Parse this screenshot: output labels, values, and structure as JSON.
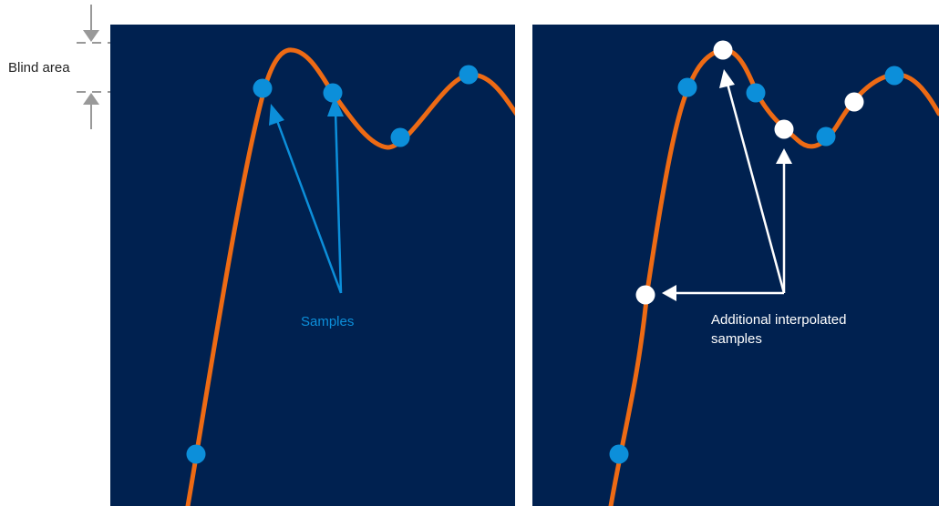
{
  "labels": {
    "blind_area": "Blind area",
    "samples": "Samples",
    "interpolated_line1": "Additional interpolated",
    "interpolated_line2": "samples"
  },
  "colors": {
    "panel_background": "#002150",
    "waveform": "#ED6A14",
    "sample_dot": "#0C8FDA",
    "interpolated_dot": "#FFFFFF",
    "samples_label": "#0C8FDA",
    "arrow_samples": "#0C8FDA",
    "arrow_interpolated": "#FFFFFF",
    "blind_area_marker": "#999999",
    "blind_area_label": "#222222"
  },
  "icons": {
    "sample_marker": "filled-circle",
    "interpolated_marker": "white-circle",
    "pointer": "arrow-icon",
    "blind_area_bracket": "double-arrow-icon"
  }
}
